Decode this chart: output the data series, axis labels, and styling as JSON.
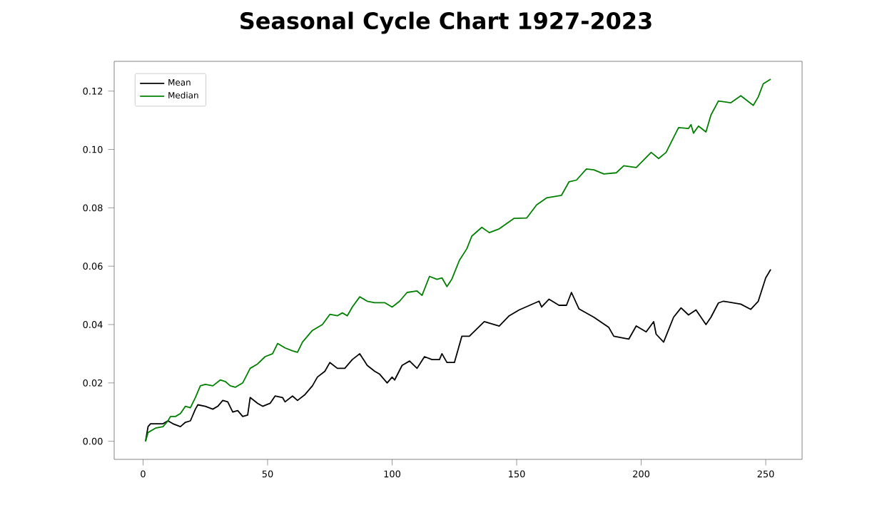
{
  "chart_data": {
    "type": "line",
    "title": "Seasonal Cycle Chart 1927-2023",
    "xlim": [
      -11.6,
      264.6
    ],
    "ylim": [
      -0.0062,
      0.1302
    ],
    "xticks": [
      0,
      50,
      100,
      150,
      200,
      250
    ],
    "yticks": [
      {
        "value": 0,
        "label": "0.00"
      },
      {
        "value": 0.02,
        "label": "0.02"
      },
      {
        "value": 0.04,
        "label": "0.04"
      },
      {
        "value": 0.06,
        "label": "0.06"
      },
      {
        "value": 0.08,
        "label": "0.08"
      },
      {
        "value": 0.1,
        "label": "0.10"
      },
      {
        "value": 0.12,
        "label": "0.12"
      }
    ],
    "legend": "top left",
    "grid": false,
    "marker": "none",
    "line_style": "solid",
    "series": [
      {
        "name": "Mean",
        "color": "#000000",
        "x": [
          1,
          2,
          3,
          5,
          8,
          10,
          12,
          15,
          17,
          19,
          21,
          22,
          25,
          28,
          30,
          32,
          34,
          36,
          38,
          40,
          42,
          43,
          46,
          48,
          51,
          53,
          56,
          57,
          60,
          62,
          65,
          68,
          70,
          73,
          75,
          78,
          81,
          84,
          87,
          90,
          93,
          95,
          98,
          100,
          101,
          104,
          107,
          110,
          113,
          116,
          119,
          120,
          122,
          125,
          128,
          131,
          137,
          143,
          147,
          151,
          159,
          160,
          163,
          167,
          170,
          172,
          175,
          181,
          187,
          189,
          195,
          198,
          202,
          205,
          206,
          209,
          213,
          216,
          219,
          222,
          226,
          228,
          231,
          233,
          240,
          244,
          247,
          250,
          252
        ],
        "values": [
          0.0,
          0.005,
          0.006,
          0.006,
          0.006,
          0.007,
          0.006,
          0.005,
          0.0065,
          0.007,
          0.011,
          0.0125,
          0.012,
          0.011,
          0.012,
          0.014,
          0.0135,
          0.01,
          0.0105,
          0.0085,
          0.009,
          0.015,
          0.013,
          0.012,
          0.013,
          0.0155,
          0.015,
          0.0135,
          0.0155,
          0.014,
          0.016,
          0.019,
          0.022,
          0.024,
          0.027,
          0.025,
          0.025,
          0.028,
          0.03,
          0.026,
          0.024,
          0.023,
          0.02,
          0.022,
          0.021,
          0.026,
          0.0275,
          0.025,
          0.029,
          0.028,
          0.028,
          0.03,
          0.027,
          0.027,
          0.036,
          0.036,
          0.041,
          0.0395,
          0.043,
          0.045,
          0.048,
          0.046,
          0.0487,
          0.0466,
          0.0466,
          0.051,
          0.0454,
          0.0425,
          0.039,
          0.036,
          0.035,
          0.0395,
          0.0375,
          0.041,
          0.0367,
          0.034,
          0.0425,
          0.0457,
          0.0433,
          0.045,
          0.04,
          0.0425,
          0.0474,
          0.048,
          0.047,
          0.0452,
          0.048,
          0.056,
          0.0589
        ]
      },
      {
        "name": "Median",
        "color": "#008000",
        "x": [
          1,
          2,
          5,
          8,
          10,
          11,
          13,
          15,
          17,
          19,
          21,
          23,
          25,
          28,
          31,
          33,
          35,
          37,
          40,
          43,
          46,
          49,
          52,
          54,
          57,
          60,
          62,
          64,
          68,
          72,
          75,
          78,
          80,
          82,
          84,
          87,
          90,
          93,
          97,
          100,
          103,
          106,
          110,
          112,
          115,
          118,
          120,
          122,
          124,
          127,
          130,
          132,
          136,
          139,
          143,
          149,
          154,
          158,
          162,
          168,
          171,
          174,
          178,
          181,
          185,
          190,
          193,
          198,
          204,
          207,
          210,
          215,
          219,
          220,
          221,
          223,
          226,
          228,
          231,
          236,
          240,
          245,
          247,
          249,
          252
        ],
        "values": [
          0.0,
          0.003,
          0.0045,
          0.005,
          0.007,
          0.0085,
          0.0085,
          0.0095,
          0.012,
          0.0115,
          0.015,
          0.019,
          0.0195,
          0.019,
          0.021,
          0.0205,
          0.019,
          0.0185,
          0.02,
          0.025,
          0.0265,
          0.029,
          0.03,
          0.0335,
          0.032,
          0.031,
          0.0305,
          0.034,
          0.038,
          0.04,
          0.0435,
          0.043,
          0.044,
          0.043,
          0.046,
          0.0495,
          0.048,
          0.0475,
          0.0475,
          0.046,
          0.048,
          0.051,
          0.0515,
          0.05,
          0.0565,
          0.0555,
          0.056,
          0.053,
          0.0556,
          0.062,
          0.066,
          0.0703,
          0.0733,
          0.0715,
          0.0728,
          0.0764,
          0.0765,
          0.081,
          0.0834,
          0.0843,
          0.0889,
          0.0895,
          0.0933,
          0.093,
          0.0916,
          0.092,
          0.0944,
          0.0938,
          0.099,
          0.0969,
          0.099,
          0.1075,
          0.1072,
          0.1085,
          0.1056,
          0.108,
          0.106,
          0.1118,
          0.1166,
          0.116,
          0.1184,
          0.1151,
          0.118,
          0.1225,
          0.1241
        ]
      }
    ]
  }
}
